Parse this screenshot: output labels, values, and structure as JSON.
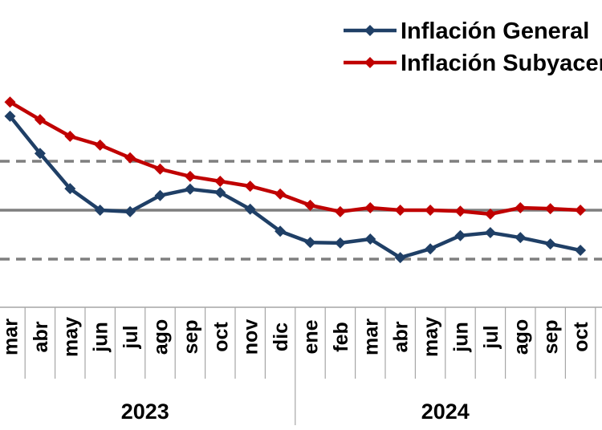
{
  "chart_data": {
    "type": "line",
    "title": "",
    "xlabel": "",
    "ylabel": "",
    "ylim": [
      2.0,
      6.5
    ],
    "reference_lines": [
      {
        "value": 5,
        "style": "dashed",
        "color": "#7f7f7f"
      },
      {
        "value": 4,
        "style": "solid",
        "color": "#7f7f7f"
      },
      {
        "value": 3,
        "style": "dashed",
        "color": "#7f7f7f"
      }
    ],
    "grid": false,
    "legend_position": "top-right",
    "categories": [
      "mar",
      "abr",
      "may",
      "jun",
      "jul",
      "ago",
      "sep",
      "oct",
      "nov",
      "dic",
      "ene",
      "feb",
      "mar",
      "abr",
      "may",
      "jun",
      "jul",
      "ago",
      "sep",
      "oct"
    ],
    "year_groups": [
      {
        "label": "2023",
        "count": 10
      },
      {
        "label": "2024",
        "count": 10
      }
    ],
    "series": [
      {
        "name": "Inflación General",
        "color": "#1f3f66",
        "values": [
          5.92,
          5.16,
          4.44,
          4.0,
          3.97,
          4.3,
          4.43,
          4.36,
          4.02,
          3.57,
          3.34,
          3.33,
          3.41,
          3.03,
          3.21,
          3.48,
          3.54,
          3.44,
          3.31,
          3.18
        ]
      },
      {
        "name": "Inflación Subyacente",
        "color": "#c00000",
        "values": [
          6.21,
          5.85,
          5.51,
          5.33,
          5.07,
          4.84,
          4.69,
          4.59,
          4.49,
          4.33,
          4.1,
          3.97,
          4.05,
          4.0,
          4.0,
          3.98,
          3.92,
          4.05,
          4.03,
          4.0
        ]
      }
    ]
  }
}
